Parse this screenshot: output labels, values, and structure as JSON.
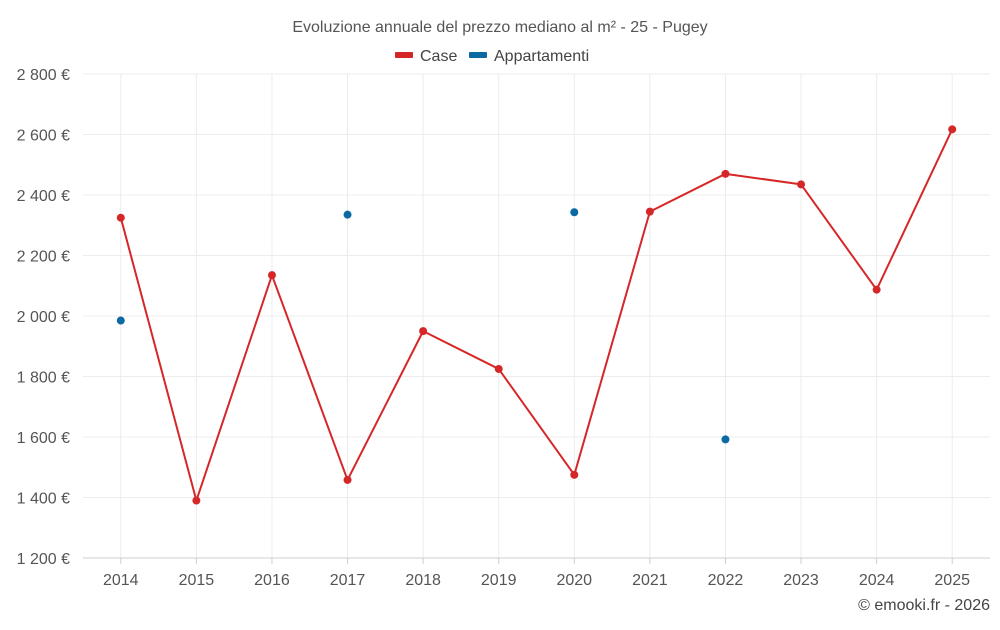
{
  "chart_data": {
    "type": "line",
    "title": "Evoluzione annuale del prezzo mediano al m² - 25 - Pugey",
    "categories": [
      "2014",
      "2015",
      "2016",
      "2017",
      "2018",
      "2019",
      "2020",
      "2021",
      "2022",
      "2023",
      "2024",
      "2025"
    ],
    "ylim": [
      1200,
      2800
    ],
    "yticks": [
      1200,
      1400,
      1600,
      1800,
      2000,
      2200,
      2400,
      2600,
      2800
    ],
    "ytick_labels": [
      "1 200 €",
      "1 400 €",
      "1 600 €",
      "1 800 €",
      "2 000 €",
      "2 200 €",
      "2 400 €",
      "2 600 €",
      "2 800 €"
    ],
    "grid": true,
    "legend_position": "top-center",
    "series": [
      {
        "name": "Case",
        "color": "#d62728",
        "style": "line-markers",
        "values": [
          2325,
          1390,
          2135,
          1458,
          1950,
          1825,
          1475,
          2345,
          2470,
          2435,
          2087,
          2617
        ]
      },
      {
        "name": "Appartamenti",
        "color": "#0a6aa1",
        "style": "markers",
        "values": [
          1985,
          null,
          null,
          2335,
          null,
          null,
          2343,
          null,
          1592,
          null,
          null,
          null
        ]
      }
    ],
    "credit": "© emooki.fr - 2026"
  }
}
